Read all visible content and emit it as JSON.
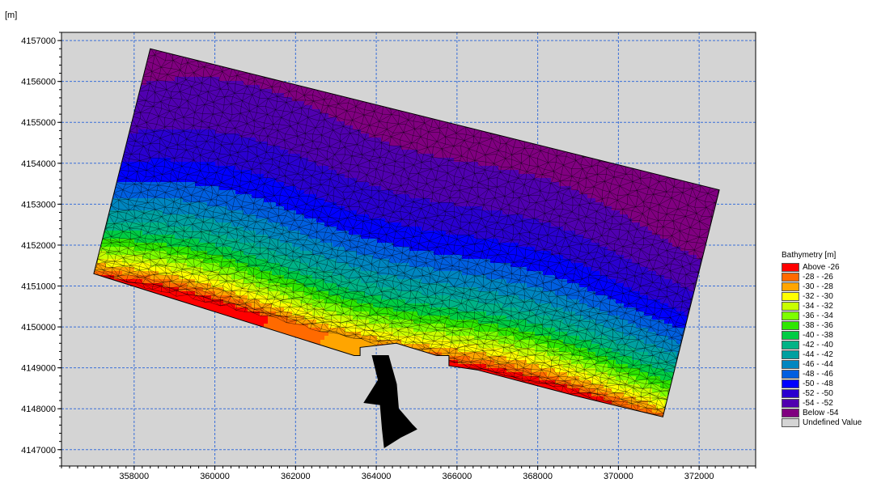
{
  "chart_data": {
    "type": "heatmap",
    "title": "",
    "y_unit_label": "[m]",
    "xlim": [
      356200,
      373400
    ],
    "ylim": [
      4146600,
      4157200
    ],
    "x_ticks": [
      358000,
      360000,
      362000,
      364000,
      366000,
      368000,
      370000,
      372000
    ],
    "y_ticks": [
      4147000,
      4148000,
      4149000,
      4150000,
      4151000,
      4152000,
      4153000,
      4154000,
      4155000,
      4156000,
      4157000
    ],
    "grid": true,
    "background_color": "#d4d4d4",
    "grid_color": "#3a6fd8",
    "mesh_line_color": "#000000",
    "domain_outline": [
      [
        357000,
        4151300
      ],
      [
        358400,
        4156800
      ],
      [
        372500,
        4153350
      ],
      [
        371100,
        4147800
      ],
      [
        369000,
        4148300
      ],
      [
        366500,
        4148950
      ],
      [
        365800,
        4149050
      ],
      [
        365800,
        4149300
      ],
      [
        365500,
        4149300
      ],
      [
        364500,
        4149600
      ],
      [
        363600,
        4149500
      ],
      [
        363600,
        4149300
      ],
      [
        363450,
        4149300
      ],
      [
        357000,
        4151300
      ]
    ],
    "river_channel": [
      [
        363900,
        4149300
      ],
      [
        364300,
        4149300
      ],
      [
        364500,
        4148600
      ],
      [
        364550,
        4148000
      ],
      [
        364900,
        4147600
      ],
      [
        365000,
        4147500
      ],
      [
        364600,
        4147300
      ],
      [
        364200,
        4147050
      ],
      [
        364150,
        4147500
      ],
      [
        364100,
        4148100
      ],
      [
        363700,
        4148150
      ],
      [
        364050,
        4148700
      ],
      [
        363900,
        4149300
      ]
    ],
    "depth_field": {
      "description": "bathymetry [m], deepest along NE part of the domain",
      "min": -56,
      "max": -25
    },
    "legend": {
      "title": "Bathymetry [m]",
      "placement": "right",
      "items": [
        {
          "label": "Above -26",
          "color": "#ff0000"
        },
        {
          "label": "-28 - -26",
          "color": "#ff6a00"
        },
        {
          "label": "-30 - -28",
          "color": "#ffa500"
        },
        {
          "label": "-32 - -30",
          "color": "#ffff00"
        },
        {
          "label": "-34 - -32",
          "color": "#c8ff00"
        },
        {
          "label": "-36 - -34",
          "color": "#7dff00"
        },
        {
          "label": "-38 - -36",
          "color": "#2ee600"
        },
        {
          "label": "-40 - -38",
          "color": "#00cc44"
        },
        {
          "label": "-42 - -40",
          "color": "#00b386"
        },
        {
          "label": "-44 - -42",
          "color": "#00a0a0"
        },
        {
          "label": "-46 - -44",
          "color": "#0086c0"
        },
        {
          "label": "-48 - -46",
          "color": "#005fe0"
        },
        {
          "label": "-50 - -48",
          "color": "#0000ff"
        },
        {
          "label": "-52 - -50",
          "color": "#2a00d0"
        },
        {
          "label": "-54 - -52",
          "color": "#5000b0"
        },
        {
          "label": "Below -54",
          "color": "#800080"
        },
        {
          "label": "Undefined Value",
          "color": "#d4d4d4"
        }
      ]
    }
  }
}
